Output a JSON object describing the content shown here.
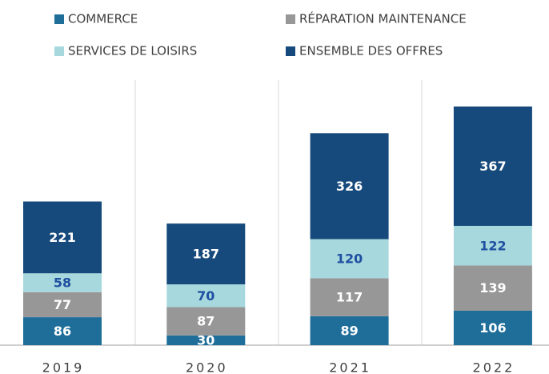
{
  "chart_data": {
    "type": "stacked_bar",
    "categories": [
      "2019",
      "2020",
      "2021",
      "2022"
    ],
    "series": [
      {
        "name": "COMMERCE",
        "color": "#1f6e9a",
        "values": [
          86,
          30,
          89,
          106
        ]
      },
      {
        "name": "RÉPARATION MAINTENANCE",
        "color": "#979797",
        "values": [
          77,
          87,
          117,
          139
        ]
      },
      {
        "name": "SERVICES DE LOISIRS",
        "color": "#a7d8dd",
        "values": [
          58,
          70,
          120,
          122
        ]
      },
      {
        "name": "ENSEMBLE DES OFFRES",
        "color": "#174a7c",
        "values": [
          221,
          187,
          326,
          367
        ]
      }
    ]
  }
}
